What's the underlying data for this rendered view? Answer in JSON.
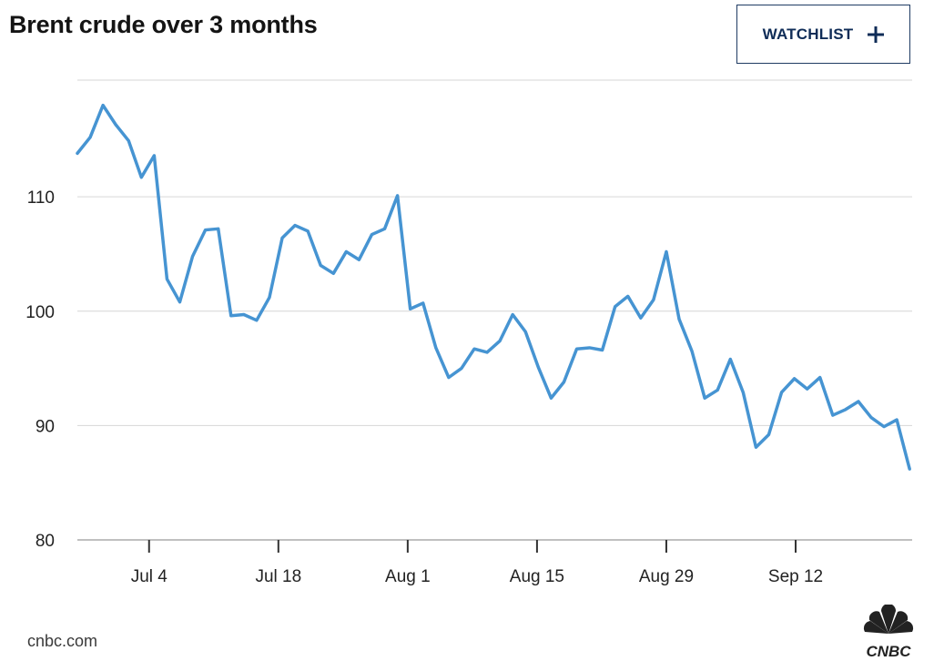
{
  "header": {
    "title": "Brent crude over 3 months",
    "watchlist_label": "WATCHLIST"
  },
  "footer": {
    "source": "cnbc.com",
    "logo_text": "CNBC"
  },
  "colors": {
    "line": "#4694d2",
    "grid": "#d6d6d6",
    "axis": "#9a9a9a",
    "button_border": "#1f3b63",
    "button_text": "#0f2c57"
  },
  "chart_data": {
    "type": "line",
    "title": "Brent crude over 3 months",
    "xlabel": "",
    "ylabel": "",
    "ylim": [
      80,
      120.2
    ],
    "xlim": [
      0,
      65.2
    ],
    "y_ticks": [
      80,
      90,
      100,
      110
    ],
    "x_ticks": [
      {
        "label": "Jul 4",
        "x": 5.6
      },
      {
        "label": "Jul 18",
        "x": 15.7
      },
      {
        "label": "Aug 1",
        "x": 25.8
      },
      {
        "label": "Aug 15",
        "x": 35.9
      },
      {
        "label": "Aug 29",
        "x": 46.0
      },
      {
        "label": "Sep 12",
        "x": 56.1
      }
    ],
    "grid": "horizontal",
    "series": [
      {
        "values": [
          113.8,
          115.2,
          118.0,
          116.3,
          114.9,
          111.7,
          113.6,
          102.8,
          100.8,
          104.8,
          107.1,
          107.2,
          99.6,
          99.7,
          99.2,
          101.2,
          106.4,
          107.5,
          107.0,
          104.0,
          103.3,
          105.2,
          104.5,
          106.7,
          107.2,
          110.1,
          100.2,
          100.7,
          96.8,
          94.2,
          95.0,
          96.7,
          96.4,
          97.4,
          99.7,
          98.2,
          95.1,
          92.4,
          93.8,
          96.7,
          96.8,
          96.6,
          100.4,
          101.3,
          99.4,
          101.0,
          105.2,
          99.3,
          96.5,
          92.4,
          93.1,
          95.8,
          92.9,
          88.1,
          89.2,
          92.9,
          94.1,
          93.2,
          94.2,
          90.9,
          91.4,
          92.1,
          90.7,
          89.9,
          90.5,
          86.2
        ]
      }
    ]
  }
}
